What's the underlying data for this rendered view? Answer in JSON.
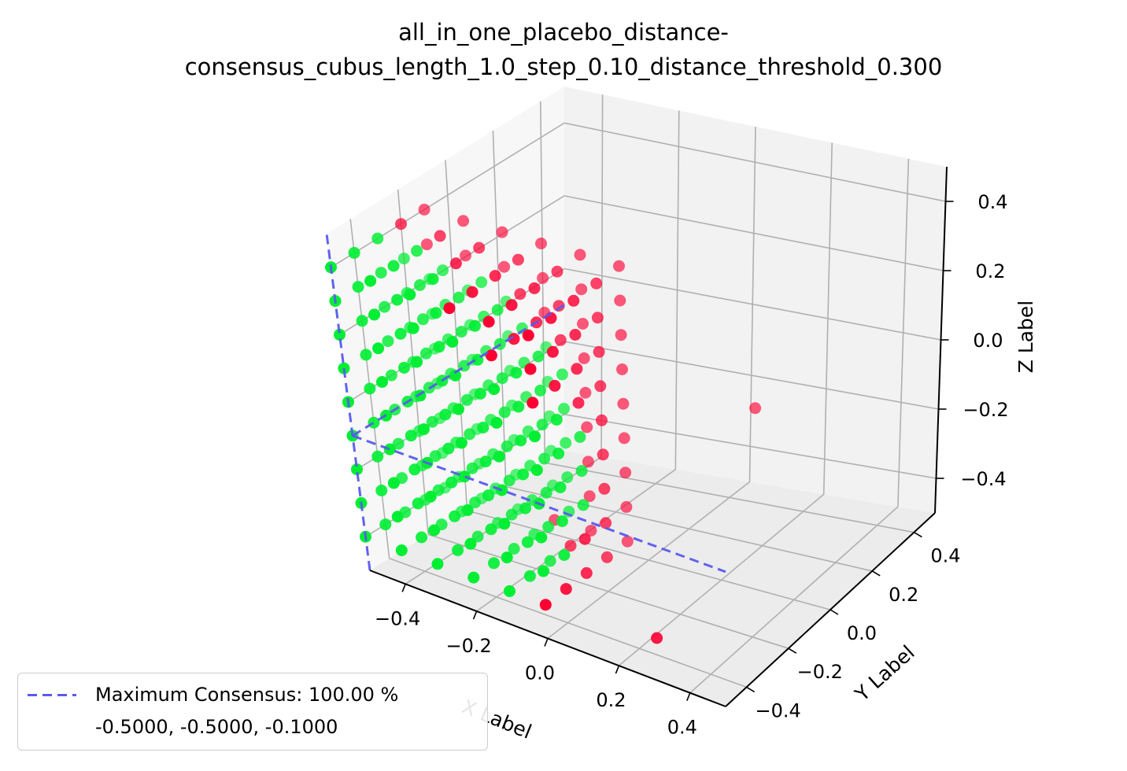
{
  "chart_data": {
    "type": "scatter",
    "projection": "3d",
    "title_lines": [
      "all_in_one_placebo_distance-",
      "consensus_cubus_length_1.0_step_0.10_distance_threshold_0.300"
    ],
    "xlabel": "X Label",
    "ylabel": "Y Label",
    "zlabel": "Z Label",
    "xlim": [
      -0.5,
      0.5
    ],
    "ylim": [
      -0.5,
      0.5
    ],
    "zlim": [
      -0.5,
      0.5
    ],
    "x_ticks": [
      "−0.4",
      "−0.2",
      "0.0",
      "0.2",
      "0.4"
    ],
    "y_ticks": [
      "−0.4",
      "−0.2",
      "0.0",
      "0.2",
      "0.4"
    ],
    "z_ticks": [
      "−0.4",
      "−0.2",
      "0.0",
      "0.2",
      "0.4"
    ],
    "grid": true,
    "legend_position": "lower-left",
    "colors": {
      "consensus": "#00ee33",
      "no_consensus": "#ff0033",
      "max_line": "#5a5aee"
    },
    "max_consensus": {
      "label_line1": "Maximum Consensus: 100.00 %",
      "label_line2": "-0.5000, -0.5000, -0.1000",
      "point": [
        -0.5,
        -0.5,
        -0.1
      ]
    }
  }
}
